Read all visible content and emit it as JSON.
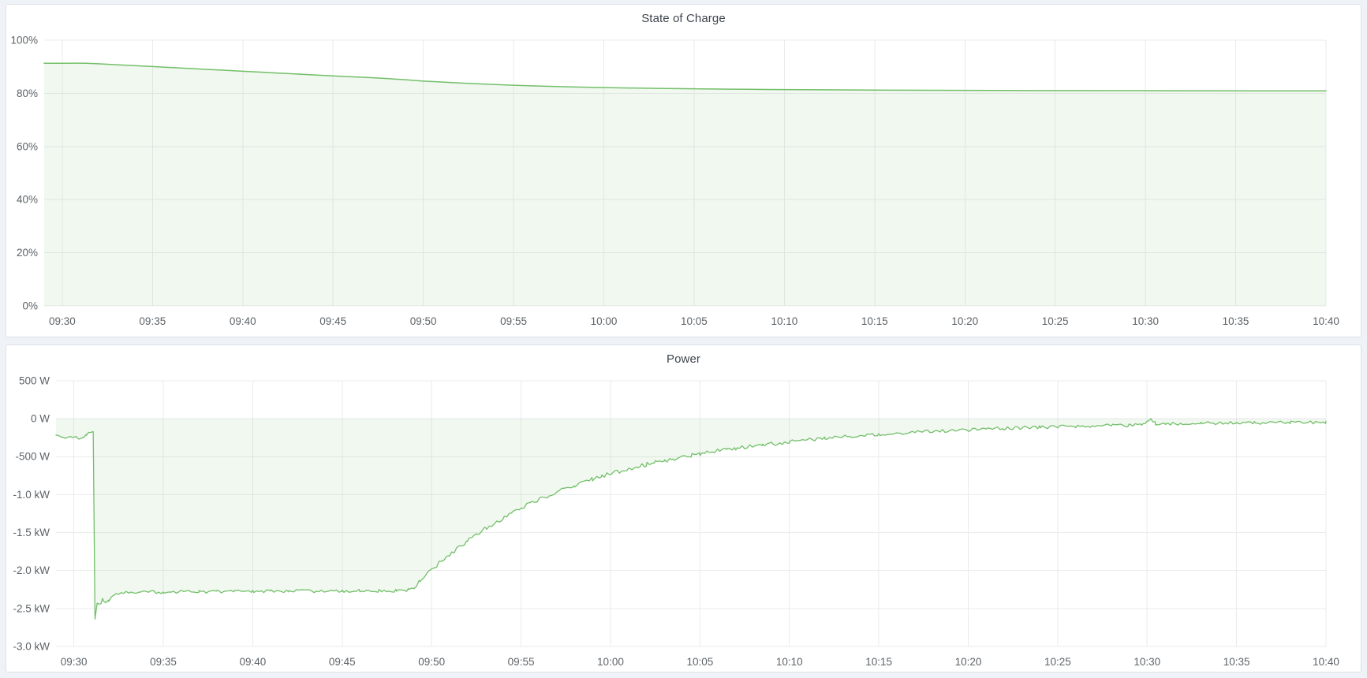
{
  "page": {
    "background_color": "#eff2f6",
    "panel_background": "#ffffff",
    "panel_border_color": "#dde2e9"
  },
  "colors": {
    "series_green": "#73bf69",
    "series_fill": "rgba(115,191,105,0.10)",
    "grid_line": "#eaebed",
    "axis_text": "#5d6368",
    "title_text": "#3e454e"
  },
  "panels": [
    {
      "title": "State of Charge"
    },
    {
      "title": "Power"
    }
  ],
  "chart_data": [
    {
      "type": "area",
      "title": "State of Charge",
      "unit": "percent",
      "legend": false,
      "grid": true,
      "ylim": [
        0,
        100
      ],
      "area_baseline": 0,
      "y_ticks": [
        {
          "value": 100,
          "label": "100%"
        },
        {
          "value": 80,
          "label": "80%"
        },
        {
          "value": 60,
          "label": "60%"
        },
        {
          "value": 40,
          "label": "40%"
        },
        {
          "value": 20,
          "label": "20%"
        },
        {
          "value": 0,
          "label": "0%"
        }
      ],
      "x_axis": {
        "domain_minutes": [
          -1,
          70
        ],
        "tick_minutes": [
          0,
          5,
          10,
          15,
          20,
          25,
          30,
          35,
          40,
          45,
          50,
          55,
          60,
          65,
          70
        ],
        "tick_labels": [
          "09:30",
          "09:35",
          "09:40",
          "09:45",
          "09:50",
          "09:55",
          "10:00",
          "10:05",
          "10:10",
          "10:15",
          "10:20",
          "10:25",
          "10:30",
          "10:35",
          "10:40"
        ]
      },
      "points": [
        [
          -1,
          91.33
        ],
        [
          0,
          91.33
        ],
        [
          0.8,
          91.35
        ],
        [
          1.3,
          91.32
        ],
        [
          2,
          91.12
        ],
        [
          3,
          90.78
        ],
        [
          4,
          90.43
        ],
        [
          5,
          90.08
        ],
        [
          6,
          89.73
        ],
        [
          7,
          89.38
        ],
        [
          8,
          89.02
        ],
        [
          9,
          88.67
        ],
        [
          10,
          88.32
        ],
        [
          11,
          87.97
        ],
        [
          12,
          87.62
        ],
        [
          13,
          87.27
        ],
        [
          14,
          86.92
        ],
        [
          15,
          86.57
        ],
        [
          16,
          86.25
        ],
        [
          17,
          85.93
        ],
        [
          18,
          85.58
        ],
        [
          19,
          85.12
        ],
        [
          19.5,
          84.87
        ],
        [
          20,
          84.62
        ],
        [
          21,
          84.26
        ],
        [
          22,
          83.92
        ],
        [
          23,
          83.6
        ],
        [
          24,
          83.31
        ],
        [
          25,
          83.05
        ],
        [
          26,
          82.83
        ],
        [
          27,
          82.63
        ],
        [
          28,
          82.46
        ],
        [
          29,
          82.31
        ],
        [
          30,
          82.18
        ],
        [
          31,
          82.06
        ],
        [
          32,
          81.96
        ],
        [
          33,
          81.87
        ],
        [
          34,
          81.79
        ],
        [
          35,
          81.71
        ],
        [
          36,
          81.64
        ],
        [
          37,
          81.58
        ],
        [
          38,
          81.52
        ],
        [
          39,
          81.47
        ],
        [
          40,
          81.42
        ],
        [
          42,
          81.33
        ],
        [
          44,
          81.26
        ],
        [
          46,
          81.2
        ],
        [
          48,
          81.15
        ],
        [
          50,
          81.11
        ],
        [
          52,
          81.08
        ],
        [
          54,
          81.05
        ],
        [
          56,
          81.03
        ],
        [
          58,
          81.01
        ],
        [
          60,
          80.99
        ],
        [
          62,
          80.97
        ],
        [
          64,
          80.96
        ],
        [
          66,
          80.95
        ],
        [
          68,
          80.94
        ],
        [
          70,
          80.93
        ]
      ]
    },
    {
      "type": "area",
      "title": "Power",
      "unit": "watts",
      "legend": false,
      "grid": true,
      "ylim": [
        -3000,
        500
      ],
      "area_baseline": 0,
      "sample_dt_minutes": 0.14,
      "y_ticks": [
        {
          "value": 500,
          "label": "500 W"
        },
        {
          "value": 0,
          "label": "0 W"
        },
        {
          "value": -500,
          "label": "-500 W"
        },
        {
          "value": -1000,
          "label": "-1.0 kW"
        },
        {
          "value": -1500,
          "label": "-1.5 kW"
        },
        {
          "value": -2000,
          "label": "-2.0 kW"
        },
        {
          "value": -2500,
          "label": "-2.5 kW"
        },
        {
          "value": -3000,
          "label": "-3.0 kW"
        }
      ],
      "x_axis": {
        "domain_minutes": [
          -1,
          70
        ],
        "tick_minutes": [
          0,
          5,
          10,
          15,
          20,
          25,
          30,
          35,
          40,
          45,
          50,
          55,
          60,
          65,
          70
        ],
        "tick_labels": [
          "09:30",
          "09:35",
          "09:40",
          "09:45",
          "09:50",
          "09:55",
          "10:00",
          "10:05",
          "10:10",
          "10:15",
          "10:20",
          "10:25",
          "10:30",
          "10:35",
          "10:40"
        ]
      },
      "noise_segments": [
        {
          "from": -1,
          "to": 1.0,
          "amp": 14
        },
        {
          "from": 1.4,
          "to": 18.7,
          "amp": 20
        },
        {
          "from": 19,
          "to": 40,
          "amp": 26
        },
        {
          "from": 40,
          "to": 59.5,
          "amp": 22
        },
        {
          "from": 59.5,
          "to": 70,
          "amp": 20
        }
      ],
      "points": [
        [
          -1,
          -210
        ],
        [
          -0.75,
          -232
        ],
        [
          -0.5,
          -246
        ],
        [
          -0.3,
          -252
        ],
        [
          -0.1,
          -236
        ],
        [
          0.1,
          -246
        ],
        [
          0.3,
          -258
        ],
        [
          0.5,
          -250
        ],
        [
          0.7,
          -214
        ],
        [
          0.85,
          -180
        ],
        [
          1,
          -162
        ],
        [
          1.08,
          -172
        ],
        [
          1.18,
          -2640
        ],
        [
          1.3,
          -2430
        ],
        [
          1.45,
          -2450
        ],
        [
          1.6,
          -2380
        ],
        [
          1.78,
          -2432
        ],
        [
          1.95,
          -2390
        ],
        [
          2.2,
          -2328
        ],
        [
          2.5,
          -2300
        ],
        [
          3,
          -2292
        ],
        [
          4,
          -2284
        ],
        [
          5,
          -2286
        ],
        [
          6,
          -2278
        ],
        [
          7,
          -2281
        ],
        [
          8,
          -2274
        ],
        [
          9,
          -2278
        ],
        [
          10,
          -2271
        ],
        [
          11,
          -2274
        ],
        [
          12,
          -2269
        ],
        [
          13,
          -2272
        ],
        [
          14,
          -2268
        ],
        [
          15,
          -2270
        ],
        [
          16,
          -2267
        ],
        [
          17,
          -2269
        ],
        [
          18,
          -2265
        ],
        [
          18.7,
          -2254
        ],
        [
          19,
          -2218
        ],
        [
          19.35,
          -2145
        ],
        [
          19.7,
          -2062
        ],
        [
          20,
          -1992
        ],
        [
          20.5,
          -1884
        ],
        [
          21,
          -1790
        ],
        [
          21.5,
          -1697
        ],
        [
          22,
          -1610
        ],
        [
          22.5,
          -1527
        ],
        [
          23,
          -1449
        ],
        [
          23.5,
          -1375
        ],
        [
          24,
          -1306
        ],
        [
          24.5,
          -1240
        ],
        [
          25,
          -1178
        ],
        [
          25.5,
          -1119
        ],
        [
          26,
          -1064
        ],
        [
          26.5,
          -1013
        ],
        [
          27,
          -965
        ],
        [
          27.5,
          -920
        ],
        [
          28,
          -876
        ],
        [
          28.5,
          -835
        ],
        [
          29,
          -796
        ],
        [
          29.5,
          -760
        ],
        [
          30,
          -725
        ],
        [
          30.5,
          -692
        ],
        [
          31,
          -661
        ],
        [
          31.5,
          -631
        ],
        [
          32,
          -603
        ],
        [
          32.5,
          -577
        ],
        [
          33,
          -552
        ],
        [
          33.5,
          -527
        ],
        [
          34,
          -504
        ],
        [
          34.5,
          -483
        ],
        [
          35,
          -462
        ],
        [
          35.5,
          -443
        ],
        [
          36,
          -424
        ],
        [
          36.5,
          -406
        ],
        [
          37,
          -389
        ],
        [
          37.5,
          -373
        ],
        [
          38,
          -358
        ],
        [
          38.5,
          -343
        ],
        [
          39,
          -329
        ],
        [
          39.5,
          -316
        ],
        [
          40,
          -304
        ],
        [
          41,
          -280
        ],
        [
          42,
          -259
        ],
        [
          43,
          -239
        ],
        [
          44,
          -222
        ],
        [
          45,
          -206
        ],
        [
          46,
          -192
        ],
        [
          47,
          -179
        ],
        [
          48,
          -167
        ],
        [
          49,
          -156
        ],
        [
          50,
          -146
        ],
        [
          51,
          -136
        ],
        [
          52,
          -128
        ],
        [
          53,
          -120
        ],
        [
          54,
          -113
        ],
        [
          55,
          -107
        ],
        [
          56,
          -101
        ],
        [
          57,
          -96
        ],
        [
          58,
          -91
        ],
        [
          59,
          -86
        ],
        [
          59.7,
          -79
        ],
        [
          60,
          -34
        ],
        [
          60.2,
          4
        ],
        [
          60.45,
          -58
        ],
        [
          61,
          -70
        ],
        [
          62,
          -64
        ],
        [
          63,
          -60
        ],
        [
          64,
          -57
        ],
        [
          65,
          -55
        ],
        [
          66,
          -53
        ],
        [
          67,
          -51
        ],
        [
          68,
          -50
        ],
        [
          69,
          -49
        ],
        [
          70,
          -50
        ]
      ]
    }
  ]
}
